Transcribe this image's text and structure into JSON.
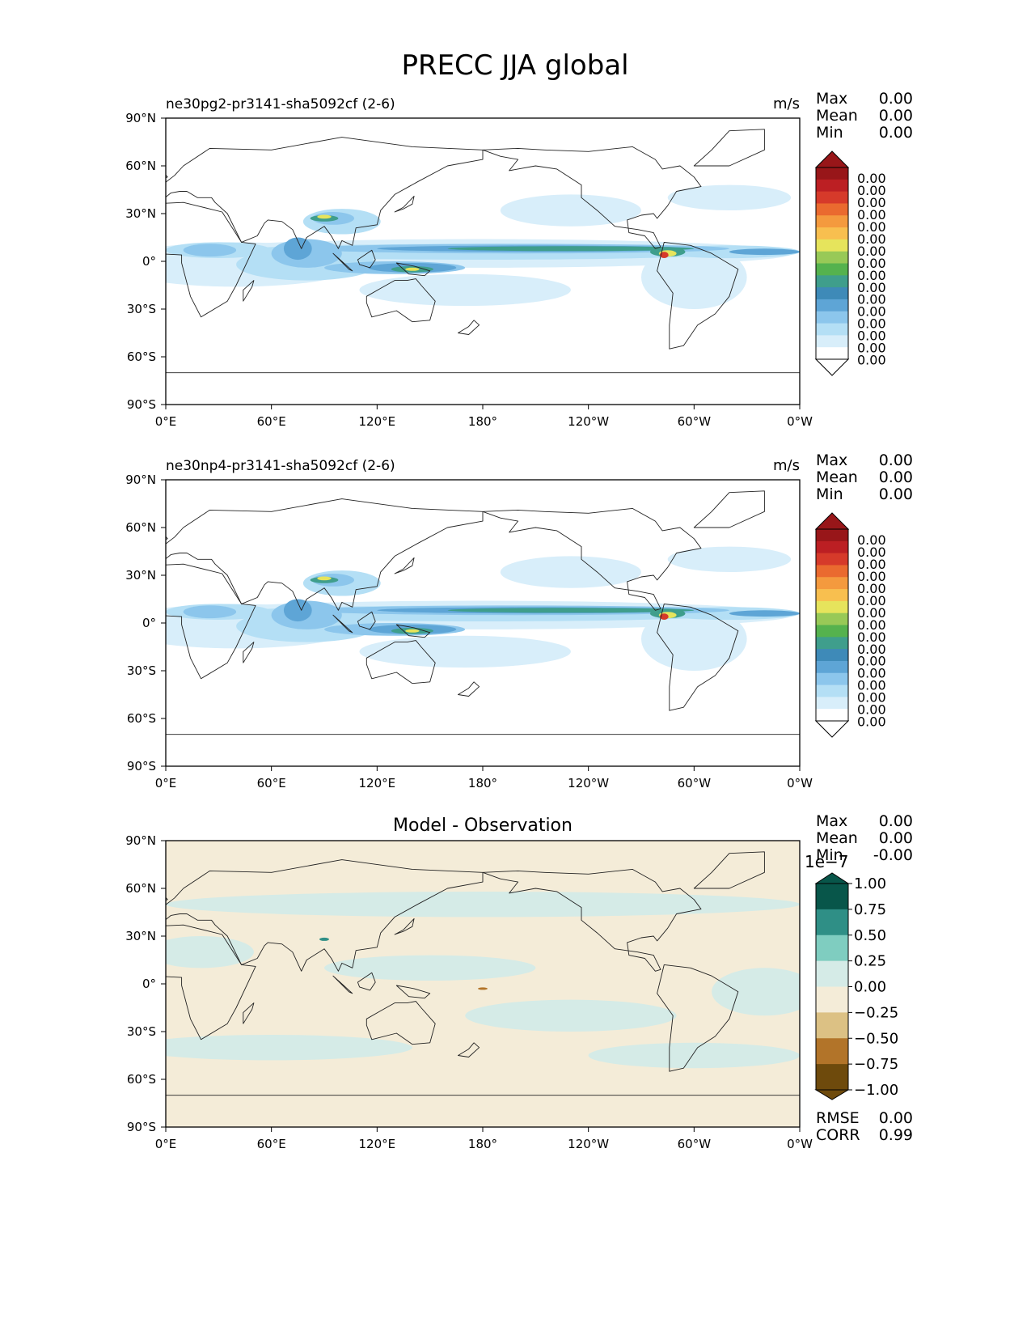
{
  "title": "PRECC JJA global",
  "colors": {
    "precip_levels": [
      "#ffffff",
      "#d8eefa",
      "#b4dff5",
      "#8cc6ec",
      "#5ea5d6",
      "#3e8ab8",
      "#3f9e8c",
      "#55b24e",
      "#98c957",
      "#e6e45c",
      "#f8bf4f",
      "#f49a3e",
      "#ea6a2f",
      "#d63a2a",
      "#bc1f23",
      "#981619"
    ],
    "diff_levels": [
      "#6e4a0c",
      "#b27429",
      "#dcc184",
      "#f4ecd8",
      "#d5ebe7",
      "#7fcdc0",
      "#2f8f86",
      "#08564a"
    ]
  },
  "chart_data": [
    {
      "type": "heatmap",
      "panel_title": "ne30pg2-pr3141-sha5092cf (2-6)",
      "units": "m/s",
      "stats": [
        {
          "label": "Max",
          "value": "0.00"
        },
        {
          "label": "Mean",
          "value": "0.00"
        },
        {
          "label": "Min",
          "value": "0.00"
        }
      ],
      "xticks": [
        "0°E",
        "60°E",
        "120°E",
        "180°",
        "120°W",
        "60°W",
        "0°W"
      ],
      "yticks": [
        "90°N",
        "60°N",
        "30°N",
        "0°",
        "30°S",
        "60°S",
        "90°S"
      ],
      "xlim": [
        0,
        360
      ],
      "ylim": [
        -90,
        90
      ],
      "colorbar_labels": [
        "0.00",
        "0.00",
        "0.00",
        "0.00",
        "0.00",
        "0.00",
        "0.00",
        "0.00",
        "0.00",
        "0.00",
        "0.00",
        "0.00",
        "0.00",
        "0.00",
        "0.00",
        "0.00"
      ],
      "colorbar_extend": "both"
    },
    {
      "type": "heatmap",
      "panel_title": "ne30np4-pr3141-sha5092cf (2-6)",
      "units": "m/s",
      "stats": [
        {
          "label": "Max",
          "value": "0.00"
        },
        {
          "label": "Mean",
          "value": "0.00"
        },
        {
          "label": "Min",
          "value": "0.00"
        }
      ],
      "xticks": [
        "0°E",
        "60°E",
        "120°E",
        "180°",
        "120°W",
        "60°W",
        "0°W"
      ],
      "yticks": [
        "90°N",
        "60°N",
        "30°N",
        "0°",
        "30°S",
        "60°S",
        "90°S"
      ],
      "xlim": [
        0,
        360
      ],
      "ylim": [
        -90,
        90
      ],
      "colorbar_labels": [
        "0.00",
        "0.00",
        "0.00",
        "0.00",
        "0.00",
        "0.00",
        "0.00",
        "0.00",
        "0.00",
        "0.00",
        "0.00",
        "0.00",
        "0.00",
        "0.00",
        "0.00",
        "0.00"
      ],
      "colorbar_extend": "both"
    },
    {
      "type": "heatmap",
      "panel_title": "Model - Observation",
      "units": "",
      "stats": [
        {
          "label": "Max",
          "value": "0.00"
        },
        {
          "label": "Mean",
          "value": "0.00"
        },
        {
          "label": "Min",
          "value": "-0.00"
        }
      ],
      "stats_bottom": [
        {
          "label": "RMSE",
          "value": "0.00"
        },
        {
          "label": "CORR",
          "value": "0.99"
        }
      ],
      "xticks": [
        "0°E",
        "60°E",
        "120°E",
        "180°",
        "120°W",
        "60°W",
        "0°W"
      ],
      "yticks": [
        "90°N",
        "60°N",
        "30°N",
        "0°",
        "30°S",
        "60°S",
        "90°S"
      ],
      "xlim": [
        0,
        360
      ],
      "ylim": [
        -90,
        90
      ],
      "colorbar_scale": "1e−7",
      "colorbar_ticks": [
        1.0,
        0.75,
        0.5,
        0.25,
        0.0,
        -0.25,
        -0.5,
        -0.75,
        -1.0
      ],
      "colorbar_labels": [
        "1.00",
        "0.75",
        "0.50",
        "0.25",
        "0.00",
        "−0.25",
        "−0.50",
        "−0.75",
        "−1.00"
      ],
      "colorbar_extend": "both"
    }
  ]
}
